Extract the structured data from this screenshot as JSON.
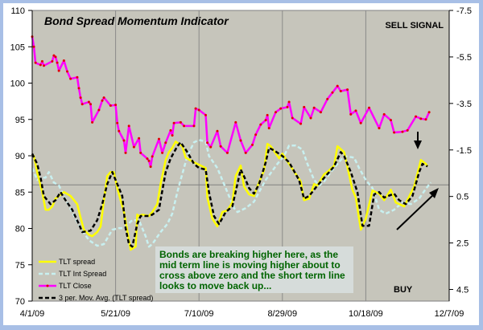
{
  "chart_data": {
    "type": "line",
    "title": "Bond Spread Momentum Indicator",
    "xlabel": "",
    "x_unit": "days since 4/1/09",
    "x_ticks": [
      "4/1/09",
      "5/21/09",
      "7/10/09",
      "8/29/09",
      "10/18/09",
      "12/7/09"
    ],
    "xlim": [
      0,
      250
    ],
    "left_axis": {
      "ylim": [
        70,
        110
      ],
      "ticks": [
        "70",
        "75",
        "80",
        "85",
        "90",
        "95",
        "100",
        "105",
        "110"
      ]
    },
    "right_axis": {
      "ylim": [
        -7.5,
        5
      ],
      "inverted": true,
      "ticks": [
        "-7.5",
        "-5.5",
        "-3.5",
        "-1.5",
        "0.5",
        "2.5",
        "4.5"
      ]
    },
    "grid": {
      "vertical": true,
      "zero_line_right_axis": true
    },
    "annotations": {
      "sell": "SELL SIGNAL",
      "buy": "BUY",
      "note": [
        "Bonds are breaking higher here, as the",
        "mid term line is moving higher about to",
        "cross above zero and the short term line",
        "looks to move back up..."
      ]
    },
    "legend_position": "bottom-left",
    "series": [
      {
        "name": "TLT spread",
        "axis": "right",
        "color": "#ffff00",
        "style": "solid",
        "x": [
          0,
          1,
          3,
          6,
          8,
          10,
          12,
          14,
          19,
          23,
          27,
          29,
          31,
          34,
          36,
          39,
          41,
          43,
          45,
          47,
          49,
          51,
          53,
          55,
          58,
          59,
          62,
          63,
          64,
          66,
          70,
          72,
          75,
          77,
          80,
          82,
          84,
          86,
          90,
          92,
          97,
          104,
          105,
          108,
          111,
          114,
          117,
          120,
          122,
          125,
          127,
          130,
          133,
          135,
          139,
          141,
          143,
          148,
          150,
          154,
          161,
          163,
          166,
          169,
          171,
          175,
          177,
          181,
          183,
          187,
          192,
          194,
          197,
          200,
          204,
          208,
          211,
          215,
          218,
          223,
          229,
          233,
          236,
          237
        ],
        "y": [
          -1.24,
          -1.24,
          -0.55,
          0.31,
          1.07,
          1.07,
          0.93,
          0.59,
          0.31,
          0.48,
          0.83,
          1.41,
          1.93,
          2.14,
          2.21,
          2.03,
          1.79,
          0.66,
          -0.38,
          -0.55,
          -0.55,
          0.14,
          0.66,
          1.17,
          2.38,
          2.79,
          2.66,
          1.28,
          1.34,
          1.28,
          1.34,
          1.17,
          0.83,
          -0.03,
          -1.07,
          -1.41,
          -1.59,
          -1.86,
          -1.66,
          -1.17,
          -0.97,
          -0.72,
          0.55,
          1.45,
          1.79,
          1.17,
          1.1,
          0.76,
          -0.38,
          -0.83,
          0.07,
          0.41,
          0.48,
          0.07,
          -0.62,
          -1.76,
          -1.66,
          -1.14,
          -1.34,
          -0.9,
          -0.14,
          0.66,
          0.59,
          -0.03,
          0.03,
          -0.45,
          -0.55,
          -0.83,
          -1.66,
          -1.41,
          0.21,
          0.55,
          1.93,
          1.45,
          0.24,
          0.38,
          0.66,
          0.21,
          0.76,
          0.93,
          0.07,
          -1.07,
          -0.9,
          -0.79
        ]
      },
      {
        "name": "TLT Int Spread",
        "axis": "right",
        "color": "#c8f0f0",
        "style": "dashed",
        "x": [
          0,
          3,
          6,
          8,
          10,
          13,
          16,
          19,
          24,
          29,
          34,
          39,
          43,
          48,
          52,
          55,
          60,
          64,
          68,
          70,
          72,
          77,
          81,
          84,
          87,
          89,
          93,
          97,
          100,
          104,
          106,
          111,
          116,
          121,
          123,
          128,
          133,
          136,
          140,
          147,
          151,
          154,
          158,
          162,
          165,
          169,
          172,
          175,
          179,
          183,
          187,
          193,
          196,
          200,
          204,
          208,
          212,
          217,
          222,
          227,
          232,
          236,
          239
        ],
        "y": [
          -0.72,
          -0.21,
          -0.31,
          -0.31,
          -0.55,
          -0.1,
          0.03,
          0.48,
          1.17,
          1.86,
          2.38,
          2.62,
          2.55,
          1.93,
          1.86,
          1.86,
          1.52,
          1.52,
          2.21,
          2.66,
          2.55,
          2.03,
          1.69,
          1.24,
          0.31,
          -0.21,
          -1.24,
          -1.83,
          -1.93,
          -1.86,
          -1.24,
          -0.72,
          0.14,
          1.0,
          1.17,
          1.0,
          0.72,
          0.31,
          -0.21,
          -0.9,
          -1.24,
          -1.69,
          -1.69,
          -1.52,
          -0.9,
          -0.21,
          0.03,
          -0.14,
          -0.55,
          -0.9,
          -1.24,
          -1.17,
          -0.72,
          -0.21,
          0.14,
          1.07,
          1.24,
          1.07,
          0.76,
          0.83,
          0.59,
          0.17,
          -0.1
        ]
      },
      {
        "name": "TLT Close",
        "axis": "left",
        "color": "#ff00ff",
        "marker_color": "#e00000",
        "style": "solid-markers",
        "x": [
          0,
          1,
          2,
          5,
          6,
          7,
          12,
          13,
          14,
          15,
          16,
          19,
          21,
          23,
          27,
          28,
          29,
          30,
          34,
          35,
          36,
          40,
          42,
          43,
          47,
          50,
          51,
          52,
          55,
          56,
          58,
          61,
          64,
          65,
          69,
          70,
          71,
          72,
          76,
          78,
          80,
          83,
          84,
          85,
          89,
          91,
          97,
          98,
          100,
          104,
          105,
          107,
          111,
          113,
          117,
          122,
          125,
          128,
          132,
          134,
          137,
          140,
          141,
          142,
          146,
          149,
          153,
          154,
          156,
          161,
          163,
          167,
          169,
          173,
          177,
          180,
          183,
          185,
          189,
          191,
          194,
          197,
          202,
          208,
          211,
          215,
          217,
          222,
          225,
          230,
          233,
          236,
          238
        ],
        "y": [
          106.4,
          105.0,
          102.8,
          102.5,
          103.0,
          102.4,
          103.0,
          103.8,
          103.6,
          102.8,
          101.7,
          103.1,
          101.6,
          100.6,
          100.8,
          99.3,
          98.0,
          97.1,
          97.4,
          97.1,
          94.6,
          96.3,
          97.6,
          98.0,
          96.9,
          97.0,
          94.5,
          93.4,
          92.1,
          90.4,
          94.1,
          91.2,
          92.4,
          90.4,
          89.6,
          89.3,
          88.5,
          89.9,
          92.3,
          90.4,
          91.8,
          93.5,
          92.8,
          94.5,
          94.6,
          94.1,
          94.1,
          96.5,
          96.3,
          95.6,
          91.8,
          91.2,
          93.4,
          91.3,
          90.4,
          94.6,
          92.1,
          90.4,
          91.5,
          92.9,
          94.3,
          94.9,
          95.6,
          93.8,
          96.0,
          96.5,
          96.7,
          97.4,
          95.2,
          94.4,
          96.7,
          95.2,
          96.6,
          96.0,
          97.8,
          98.7,
          99.6,
          98.9,
          99.1,
          95.7,
          96.2,
          94.5,
          96.6,
          93.8,
          95.7,
          94.9,
          93.2,
          93.3,
          93.5,
          95.4,
          95.1,
          95.0,
          96.0
        ]
      },
      {
        "name": "3 per. Mov. Avg. (TLT spread)",
        "axis": "right",
        "color": "#000000",
        "style": "dashed",
        "x": [
          0,
          3,
          5,
          7,
          11,
          14,
          17,
          20,
          24,
          28,
          30,
          35,
          39,
          42,
          45,
          48,
          51,
          54,
          56,
          58,
          60,
          63,
          65,
          70,
          72,
          76,
          77,
          80,
          83,
          87,
          89,
          93,
          97,
          100,
          104,
          106,
          109,
          112,
          116,
          120,
          125,
          128,
          130,
          133,
          136,
          140,
          142,
          145,
          150,
          154,
          160,
          163,
          166,
          171,
          176,
          181,
          185,
          187,
          191,
          195,
          198,
          202,
          205,
          208,
          211,
          217,
          220,
          224,
          228,
          232,
          234,
          237
        ],
        "y": [
          -1.34,
          -0.9,
          -0.31,
          0.48,
          0.83,
          0.66,
          0.31,
          0.66,
          1.07,
          1.69,
          2.03,
          1.97,
          1.52,
          0.83,
          -0.03,
          -0.55,
          -0.03,
          0.48,
          1.86,
          2.55,
          2.66,
          1.69,
          1.34,
          1.34,
          1.28,
          1.07,
          0.66,
          -0.55,
          -1.14,
          -1.66,
          -1.83,
          -1.41,
          -0.9,
          -0.72,
          -0.66,
          0.31,
          1.34,
          1.69,
          1.17,
          0.93,
          -0.66,
          -0.21,
          0.14,
          0.38,
          -0.03,
          -0.97,
          -1.59,
          -1.48,
          -1.24,
          -0.97,
          -0.21,
          0.59,
          0.48,
          0.03,
          -0.38,
          -0.79,
          -1.41,
          -1.24,
          -0.55,
          0.31,
          1.76,
          1.76,
          0.41,
          0.31,
          0.55,
          0.38,
          0.66,
          0.83,
          0.48,
          -0.55,
          -0.9,
          -0.79
        ]
      }
    ]
  }
}
